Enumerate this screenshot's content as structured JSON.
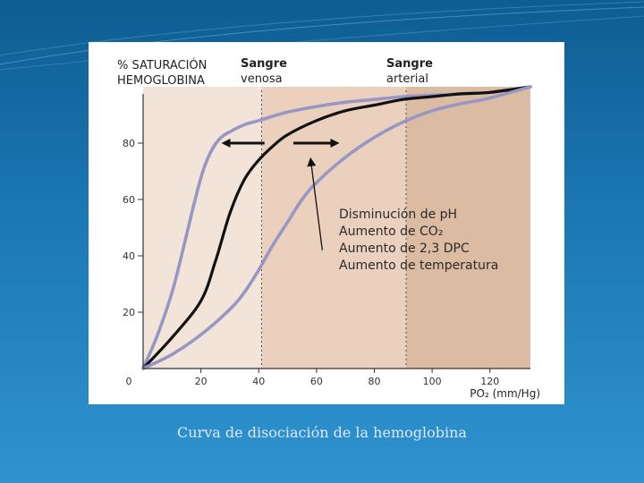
{
  "caption": "Curva de disociación de la hemoglobina",
  "chart_data": {
    "type": "line",
    "ylabel_line1": "% SATURACIÓN",
    "ylabel_line2": "HEMOGLOBINA",
    "xlabel": "PO₂ (mm/Hg)",
    "xlim": [
      0,
      134
    ],
    "ylim": [
      0,
      100
    ],
    "x_ticks": [
      {
        "value": 0,
        "label": "0"
      },
      {
        "value": 20,
        "label": "20"
      },
      {
        "value": 40,
        "label": "40"
      },
      {
        "value": 60,
        "label": "60"
      },
      {
        "value": 80,
        "label": "80"
      },
      {
        "value": 100,
        "label": "100"
      },
      {
        "value": 120,
        "label": "120"
      }
    ],
    "y_ticks": [
      {
        "value": 20,
        "label": "20"
      },
      {
        "value": 40,
        "label": "40"
      },
      {
        "value": 60,
        "label": "60"
      },
      {
        "value": 80,
        "label": "80"
      }
    ],
    "regions": [
      {
        "x_start": 0,
        "x_end": 41,
        "color": "#f3e4d9"
      },
      {
        "x_start": 41,
        "x_end": 91,
        "color": "#ead0bd"
      },
      {
        "x_start": 91,
        "x_end": 134,
        "color": "#dcbba3"
      }
    ],
    "reference_lines": [
      {
        "x": 41,
        "label_line1": "Sangre",
        "label_line2": "venosa"
      },
      {
        "x": 91,
        "label_line1": "Sangre",
        "label_line2": "arterial"
      }
    ],
    "series": [
      {
        "color": "#9896c4",
        "x": [
          0,
          5,
          10,
          14,
          18,
          21,
          24,
          27,
          30,
          35,
          40,
          50,
          60,
          70,
          80,
          90,
          100,
          110,
          120,
          134
        ],
        "y": [
          0,
          12,
          27,
          43,
          60,
          71,
          78,
          82,
          84,
          86.5,
          88,
          91,
          93,
          94.5,
          95.5,
          96.5,
          97,
          97.5,
          98,
          100
        ]
      },
      {
        "color": "#111111",
        "x": [
          0,
          10,
          20,
          25,
          30,
          35,
          40,
          45,
          50,
          60,
          70,
          80,
          90,
          100,
          110,
          120,
          134
        ],
        "y": [
          0,
          11,
          24,
          38,
          55,
          67,
          74,
          79,
          83,
          88,
          91.5,
          93.5,
          95.5,
          96.5,
          97.5,
          98,
          100
        ]
      },
      {
        "color": "#9896c4",
        "x": [
          0,
          10,
          20,
          30,
          35,
          40,
          45,
          50,
          55,
          60,
          70,
          80,
          90,
          100,
          110,
          120,
          134
        ],
        "y": [
          0,
          5,
          12,
          21,
          27,
          35,
          44,
          52,
          60,
          66,
          75,
          82,
          87.5,
          91.5,
          94,
          96,
          100
        ]
      }
    ],
    "arrows": [
      {
        "from_x": 42,
        "to_x": 28,
        "y": 80
      },
      {
        "from_x": 52,
        "to_x": 67,
        "y": 80
      }
    ],
    "annotation": {
      "lines": [
        "Disminución de pH",
        "Aumento de CO₂",
        "Aumento de 2,3 DPC",
        "Aumento de temperatura"
      ],
      "pointer": {
        "from_x": 62,
        "from_y": 42,
        "to_x": 58,
        "to_y": 74
      }
    }
  }
}
